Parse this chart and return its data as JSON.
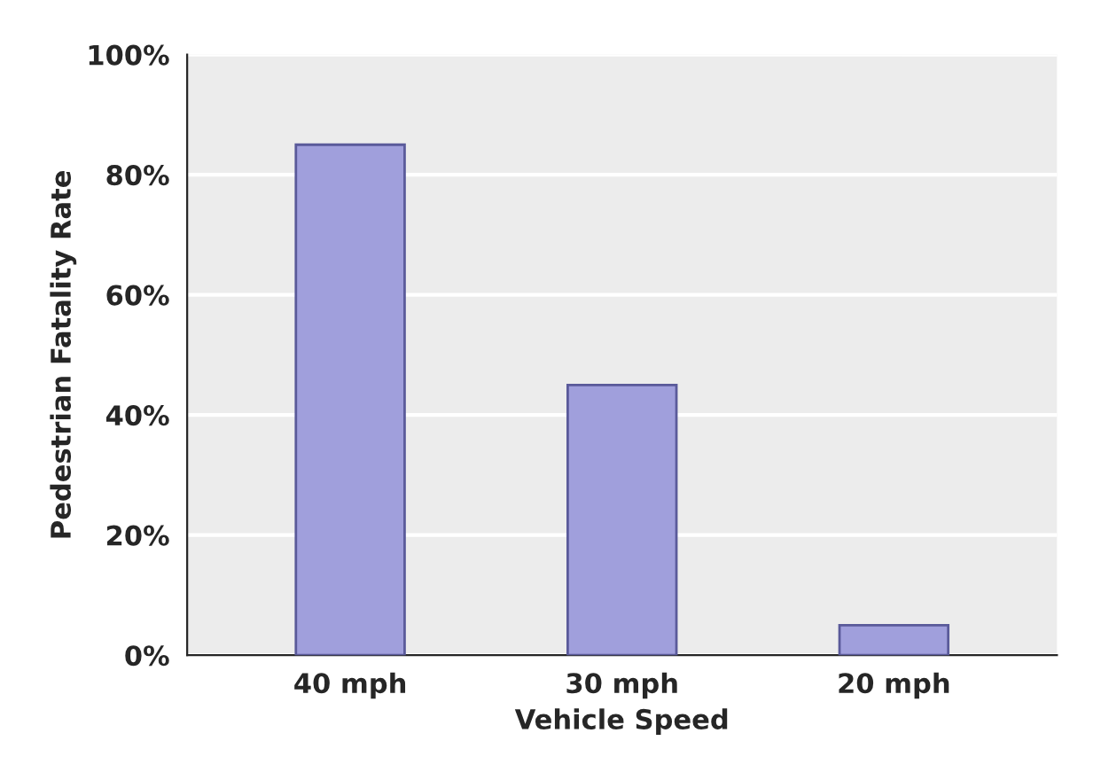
{
  "chart_data": {
    "type": "bar",
    "xlabel": "Vehicle Speed",
    "ylabel": "Pedestrian Fatality Rate",
    "categories": [
      "40 mph",
      "30 mph",
      "20 mph"
    ],
    "values": [
      85,
      45,
      5
    ],
    "color": "#a09fdc",
    "ylim": [
      0,
      100
    ],
    "yticks": [
      {
        "value": 0,
        "label": "0%"
      },
      {
        "value": 20,
        "label": "20%"
      },
      {
        "value": 40,
        "label": "40%"
      },
      {
        "value": 60,
        "label": "60%"
      },
      {
        "value": 80,
        "label": "80%"
      },
      {
        "value": 100,
        "label": "100%"
      }
    ],
    "grid": "y"
  }
}
